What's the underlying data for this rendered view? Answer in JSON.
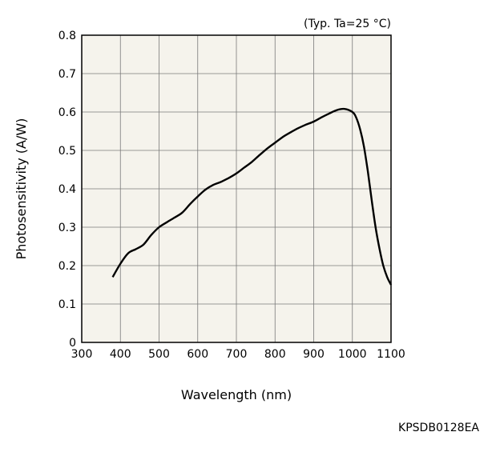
{
  "chart_data": {
    "type": "line",
    "title": "",
    "note": "(Typ. Ta=25 °C)",
    "xlabel": "Wavelength (nm)",
    "ylabel": "Photosensitivity (A/W)",
    "xlim": [
      300,
      1100
    ],
    "ylim": [
      0,
      0.8
    ],
    "xticks": [
      300,
      400,
      500,
      600,
      700,
      800,
      900,
      1000,
      1100
    ],
    "yticks": [
      0,
      0.1,
      0.2,
      0.3,
      0.4,
      0.5,
      0.6,
      0.7,
      0.8
    ],
    "ytick_labels": [
      "0",
      "0.1",
      "0.2",
      "0.3",
      "0.4",
      "0.5",
      "0.6",
      "0.7",
      "0.8"
    ],
    "grid": true,
    "background": "#f5f3ec",
    "line_color": "#000000",
    "series": [
      {
        "x": [
          380,
          400,
          420,
          440,
          460,
          480,
          500,
          520,
          540,
          560,
          580,
          600,
          620,
          640,
          660,
          680,
          700,
          720,
          740,
          760,
          780,
          800,
          820,
          840,
          860,
          880,
          900,
          920,
          940,
          960,
          980,
          1000,
          1010,
          1020,
          1030,
          1040,
          1050,
          1060,
          1070,
          1080,
          1090,
          1100
        ],
        "y": [
          0.17,
          0.205,
          0.232,
          0.243,
          0.255,
          0.28,
          0.3,
          0.313,
          0.325,
          0.338,
          0.36,
          0.38,
          0.398,
          0.41,
          0.418,
          0.428,
          0.44,
          0.455,
          0.47,
          0.488,
          0.505,
          0.52,
          0.535,
          0.547,
          0.558,
          0.567,
          0.575,
          0.586,
          0.596,
          0.605,
          0.608,
          0.6,
          0.585,
          0.555,
          0.51,
          0.445,
          0.37,
          0.3,
          0.245,
          0.2,
          0.17,
          0.15
        ]
      }
    ]
  },
  "figure_code": "KPSDB0128EA"
}
